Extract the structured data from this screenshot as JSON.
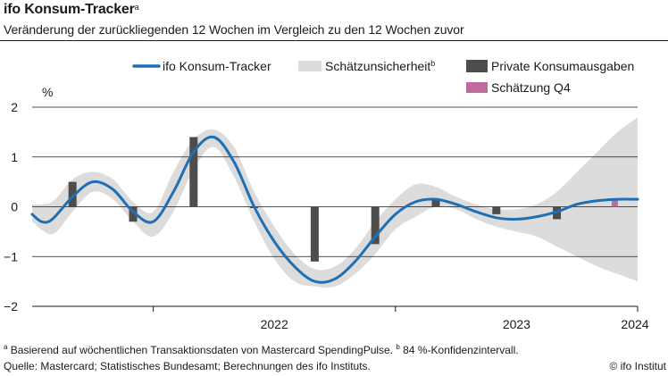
{
  "header": {
    "title": "ifo Konsum-Tracker",
    "title_sup": "a",
    "subtitle": "Veränderung der zurückliegenden 12 Wochen im Vergleich zu den 12 Wochen zuvor"
  },
  "footer": {
    "footnote_a_mark": "a",
    "footnote_a": " Basierend auf wöchentlichen Transaktionsdaten von Mastercard SpendingPulse. ",
    "footnote_b_mark": "b",
    "footnote_b": " 84 %-Konfidenzintervall.",
    "source": "Quelle: Mastercard; Statistisches Bundesamt; Berechnungen des ifo Instituts.",
    "copyright": "© ifo Institut"
  },
  "chart_data": {
    "type": "line",
    "unit_label": "%",
    "ylim": [
      -2,
      2
    ],
    "y_ticks": [
      {
        "value": 2,
        "label": "2"
      },
      {
        "value": 1,
        "label": "1"
      },
      {
        "value": 0,
        "label": "0"
      },
      {
        "value": -1,
        "label": "−1"
      },
      {
        "value": -2,
        "label": "−2"
      }
    ],
    "x_range": [
      "2021-07",
      "2024-01"
    ],
    "x_year_boundaries": [
      "2022-01",
      "2023-01",
      "2024-01"
    ],
    "x_tick_labels": [
      {
        "label": "2022",
        "at": "2022-07"
      },
      {
        "label": "2023",
        "at": "2023-07"
      },
      {
        "label": "2024",
        "at": "2024-01"
      }
    ],
    "grid": "horizontal",
    "legend_placement": "top-right",
    "colors": {
      "tracker": "#1f6fb4",
      "band": "#dcdcdc",
      "bars": "#4d4d4d",
      "estimate": "#c06aa0"
    },
    "legend": [
      {
        "label": "ifo Konsum-Tracker",
        "type": "line",
        "sup": ""
      },
      {
        "label": "Schätzunsicherheit",
        "type": "band",
        "sup": "b"
      },
      {
        "label": "Private Konsumausgaben",
        "type": "bar",
        "sup": ""
      },
      {
        "label": "Schätzung Q4",
        "type": "bar-estimate",
        "sup": ""
      }
    ],
    "series": [
      {
        "name": "ifo Konsum-Tracker",
        "type": "line",
        "x": [
          "2021-07",
          "2021-07-15",
          "2021-08",
          "2021-09",
          "2021-10",
          "2021-11",
          "2021-12",
          "2022-01",
          "2022-02",
          "2022-03",
          "2022-04",
          "2022-05",
          "2022-06",
          "2022-07",
          "2022-08",
          "2022-09",
          "2022-10",
          "2022-11",
          "2022-12",
          "2023-01",
          "2023-02",
          "2023-03",
          "2023-04",
          "2023-05",
          "2023-06",
          "2023-07",
          "2023-08",
          "2023-09",
          "2023-10",
          "2023-11",
          "2023-12",
          "2024-01"
        ],
        "y": [
          -0.15,
          -0.3,
          -0.25,
          0.2,
          0.5,
          0.35,
          -0.1,
          -0.3,
          0.3,
          1.1,
          1.4,
          0.9,
          0.0,
          -0.7,
          -1.2,
          -1.5,
          -1.45,
          -1.1,
          -0.6,
          -0.15,
          0.1,
          0.15,
          0.05,
          -0.1,
          -0.22,
          -0.25,
          -0.2,
          -0.1,
          0.05,
          0.12,
          0.15,
          0.15
        ]
      },
      {
        "name": "Schätzunsicherheit",
        "type": "band",
        "x": [
          "2021-07",
          "2021-08",
          "2021-09",
          "2021-10",
          "2021-11",
          "2021-12",
          "2022-01",
          "2022-02",
          "2022-03",
          "2022-04",
          "2022-05",
          "2022-06",
          "2022-07",
          "2022-08",
          "2022-09",
          "2022-10",
          "2022-11",
          "2022-12",
          "2023-01",
          "2023-02",
          "2023-03",
          "2023-04",
          "2023-05",
          "2023-06",
          "2023-07",
          "2023-08",
          "2023-09",
          "2023-10",
          "2023-11",
          "2023-12",
          "2024-01"
        ],
        "upper": [
          0.05,
          0.1,
          0.55,
          0.7,
          0.55,
          0.1,
          -0.1,
          0.7,
          1.35,
          1.55,
          1.2,
          0.3,
          -0.4,
          -0.95,
          -1.25,
          -1.2,
          -0.85,
          -0.3,
          0.15,
          0.45,
          0.4,
          0.2,
          0.05,
          -0.05,
          -0.05,
          0.05,
          0.3,
          0.7,
          1.1,
          1.5,
          1.8
        ],
        "lower": [
          -0.3,
          -0.55,
          -0.1,
          0.3,
          0.15,
          -0.3,
          -0.6,
          -0.1,
          0.75,
          1.2,
          0.6,
          -0.3,
          -1.05,
          -1.5,
          -1.6,
          -1.6,
          -1.35,
          -0.95,
          -0.45,
          -0.2,
          0.0,
          -0.05,
          -0.25,
          -0.4,
          -0.5,
          -0.6,
          -0.8,
          -1.0,
          -1.2,
          -1.35,
          -1.5
        ]
      },
      {
        "name": "Private Konsumausgaben",
        "type": "bar",
        "x": [
          "2021-09",
          "2021-12",
          "2022-03",
          "2022-06",
          "2022-09",
          "2022-12",
          "2023-03",
          "2023-06",
          "2023-09"
        ],
        "values": [
          0.5,
          -0.3,
          1.4,
          -0.02,
          -1.1,
          -0.75,
          0.15,
          -0.15,
          -0.25
        ]
      },
      {
        "name": "Schätzung Q4",
        "type": "bar",
        "x": [
          "2023-12"
        ],
        "values": [
          0.15
        ]
      }
    ]
  }
}
